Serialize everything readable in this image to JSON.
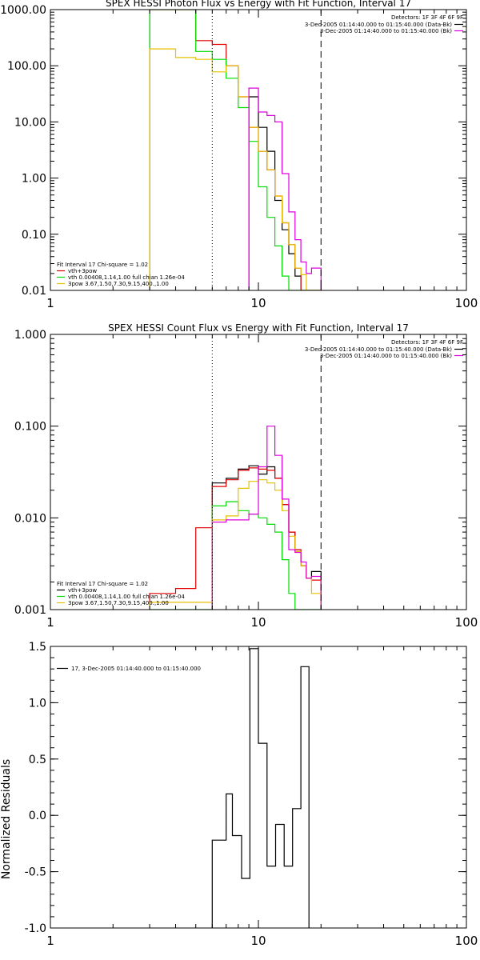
{
  "colors": {
    "axis": "#000000",
    "black": "#000000",
    "red": "#e00000",
    "green": "#00dd00",
    "yellow": "#e6c000",
    "magenta": "#dd00dd"
  },
  "chart_data": [
    {
      "type": "line",
      "title": "SPEX HESSI Photon Flux vs Energy with Fit Function, Interval 17",
      "xlabel": "",
      "ylabel": "",
      "xscale": "log",
      "yscale": "log",
      "xlim": [
        1,
        100
      ],
      "ylim": [
        0.01,
        1000
      ],
      "xticks": [
        1,
        10,
        100
      ],
      "xtick_labels": [
        "1",
        "10",
        "100"
      ],
      "yticks": [
        0.01,
        0.1,
        1,
        10,
        100,
        1000
      ],
      "ytick_labels": [
        "0.01",
        "0.10",
        "1.00",
        "10.00",
        "100.00",
        "1000.00"
      ],
      "vlines": [
        {
          "x": 6.0,
          "style": "dotted"
        },
        {
          "x": 20.0,
          "style": "dashed"
        }
      ],
      "legend_top_right": {
        "header": "Detectors: 1F 3F 4F 6F 9F",
        "entries": [
          {
            "text": "3-Dec-2005 01:14:40.000 to 01:15:40.000 (Data-Bk)",
            "color": "black"
          },
          {
            "text": "3-Dec-2005 01:14:40.000 to 01:15:40.000 (Bk)",
            "color": "magenta"
          }
        ]
      },
      "legend_bottom_left": {
        "header": "Fit Interval 17   Chi-square = 1.02",
        "entries": [
          {
            "text": "vth+3pow",
            "color": "red"
          },
          {
            "text": "vth 0.00408,1.14,1.00  full chian 1.26e-04",
            "color": "green"
          },
          {
            "text": "3pow 3.67,1.50,7.30,9.15,400.,1.00",
            "color": "yellow"
          }
        ]
      },
      "bin_edges": [
        3.0,
        4.0,
        5.0,
        6.0,
        7.0,
        8.0,
        9.0,
        10.0,
        11.0,
        12.0,
        13.0,
        14.0,
        15.0,
        16.0,
        17.0,
        18.0,
        20.0
      ],
      "series": [
        {
          "color": "black",
          "start_bin": 6,
          "values": [
            28,
            8,
            3,
            0.4,
            0.12,
            0.045,
            0.018
          ]
        },
        {
          "color": "red",
          "start_bin": 0,
          "values": [
            1000,
            1000,
            280,
            240,
            100,
            28,
            8,
            3,
            1.4,
            0.48,
            0.16,
            0.065,
            0.025,
            0.0001,
            0.0001,
            0.0001
          ]
        },
        {
          "color": "green",
          "start_bin": 0,
          "values": [
            1000,
            1000,
            180,
            130,
            60,
            18,
            4.5,
            0.7,
            0.2,
            0.062,
            0.018,
            0.0001,
            0.0001,
            0.0001,
            0.0001,
            0.0001
          ]
        },
        {
          "color": "yellow",
          "start_bin": 0,
          "values": [
            200,
            140,
            130,
            78,
            100,
            28,
            8,
            3,
            1.4,
            0.48,
            0.16,
            0.065,
            0.025,
            0.019,
            0.0001,
            0.0001
          ]
        },
        {
          "color": "magenta",
          "start_bin": 6,
          "values": [
            40,
            15,
            13,
            10,
            1.2,
            0.25,
            0.08,
            0.032,
            0.02,
            0.025
          ]
        }
      ]
    },
    {
      "type": "line",
      "title": "SPEX HESSI Count Flux vs Energy with Fit Function, Interval 17",
      "xlabel": "",
      "ylabel": "",
      "xscale": "log",
      "yscale": "log",
      "xlim": [
        1,
        100
      ],
      "ylim": [
        0.001,
        1
      ],
      "xticks": [
        1,
        10,
        100
      ],
      "xtick_labels": [
        "1",
        "10",
        "100"
      ],
      "yticks": [
        0.001,
        0.01,
        0.1,
        1
      ],
      "ytick_labels": [
        "0.001",
        "0.010",
        "0.100",
        "1.000"
      ],
      "vlines": [
        {
          "x": 6.0,
          "style": "dotted"
        },
        {
          "x": 20.0,
          "style": "dashed"
        }
      ],
      "legend_top_right": {
        "header": "Detectors: 1F 3F 4F 6F 9F",
        "entries": [
          {
            "text": "3-Dec-2005 01:14:40.000 to 01:15:40.000 (Data-Bk)",
            "color": "black"
          },
          {
            "text": "3-Dec-2005 01:14:40.000 to 01:15:40.000 (Bk)",
            "color": "magenta"
          }
        ]
      },
      "legend_bottom_left": {
        "header": "Fit Interval 17   Chi-square = 1.02",
        "entries": [
          {
            "text": "vth+3pow",
            "color": "black"
          },
          {
            "text": "vth 0.00408,1.14,1.00  full chian 1.26e-04",
            "color": "green"
          },
          {
            "text": "3pow 3.67,1.50,7.30,9.15,400.,1.00",
            "color": "yellow"
          }
        ]
      },
      "bin_edges": [
        3.0,
        4.0,
        5.0,
        6.0,
        7.0,
        8.0,
        9.0,
        10.0,
        11.0,
        12.0,
        13.0,
        14.0,
        15.0,
        16.0,
        17.0,
        18.0,
        20.0
      ],
      "series": [
        {
          "color": "black",
          "start_bin": 3,
          "values": [
            0.024,
            0.027,
            0.034,
            0.037,
            0.03,
            0.036,
            0.027,
            0.014,
            0.007,
            0.0045,
            0.003,
            0.0022,
            0.0026
          ]
        },
        {
          "color": "red",
          "start_bin": 0,
          "values": [
            0.0015,
            0.0017,
            0.0078,
            0.022,
            0.026,
            0.033,
            0.035,
            0.034,
            0.033,
            0.027,
            0.014,
            0.007,
            0.0045,
            0.003,
            0.0022,
            0.0021
          ]
        },
        {
          "color": "green",
          "start_bin": 0,
          "values": [
            0.0001,
            0.0001,
            0.0001,
            0.0135,
            0.015,
            0.012,
            0.011,
            0.01,
            0.0085,
            0.007,
            0.0035,
            0.0015,
            0.001,
            0.0008,
            0.0001,
            0.0001
          ]
        },
        {
          "color": "yellow",
          "start_bin": 0,
          "values": [
            0.0012,
            0.0012,
            0.0012,
            0.0095,
            0.0105,
            0.021,
            0.025,
            0.026,
            0.024,
            0.02,
            0.012,
            0.0063,
            0.0043,
            0.003,
            0.0022,
            0.0015
          ]
        },
        {
          "color": "magenta",
          "start_bin": 3,
          "values": [
            0.009,
            0.0095,
            0.0095,
            0.011,
            0.036,
            0.1,
            0.048,
            0.016,
            0.0045,
            0.0042,
            0.0033,
            0.0022,
            0.0023
          ]
        }
      ]
    },
    {
      "type": "line",
      "title": "",
      "xlabel": "",
      "ylabel": "Normalized Residuals",
      "xscale": "log",
      "yscale": "linear",
      "xlim": [
        1,
        100
      ],
      "ylim": [
        -1.0,
        1.5
      ],
      "xticks": [
        1,
        10,
        100
      ],
      "xtick_labels": [
        "1",
        "10",
        "100"
      ],
      "yticks": [
        -1.0,
        -0.5,
        0.0,
        0.5,
        1.0,
        1.5
      ],
      "ytick_labels": [
        "-1.0",
        "-0.5",
        "0.0",
        "0.5",
        "1.0",
        "1.5"
      ],
      "legend": {
        "text": "17,  3-Dec-2005 01:14:40.000 to 01:15:40.000",
        "color": "black"
      },
      "bin_edges": [
        6.0,
        7.0,
        7.5,
        8.3,
        9.1,
        10.0,
        11.0,
        12.1,
        13.3,
        14.6,
        16.0,
        17.5,
        20.0
      ],
      "series": [
        {
          "color": "black",
          "values": [
            -0.22,
            0.19,
            -0.18,
            -0.56,
            1.48,
            0.64,
            -0.45,
            -0.08,
            -0.45,
            0.06,
            1.32
          ]
        }
      ]
    }
  ]
}
